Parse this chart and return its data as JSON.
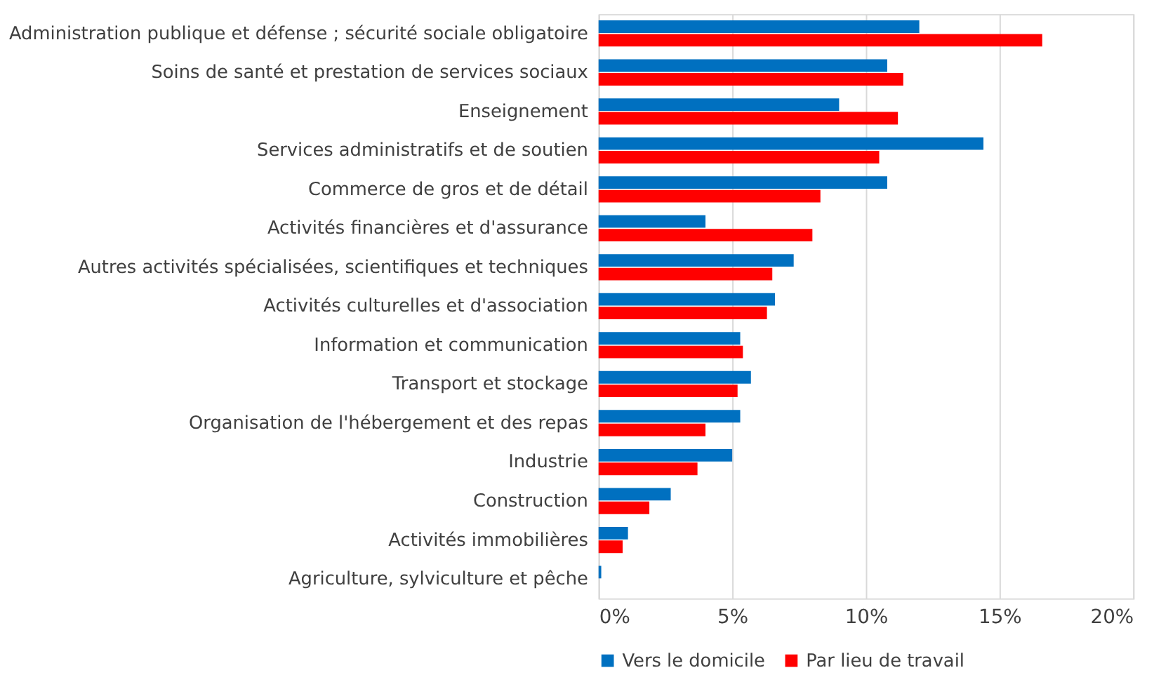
{
  "chart_data": {
    "type": "bar",
    "orientation": "horizontal",
    "categories": [
      "Administration publique et défense ; sécurité sociale obligatoire",
      "Soins de santé et prestation de services sociaux",
      "Enseignement",
      "Services administratifs et de soutien",
      "Commerce de gros et de détail",
      "Activités financières et d'assurance",
      "Autres activités spécialisées, scientifiques et techniques",
      "Activités culturelles et d'association",
      "Information et communication",
      "Transport et stockage",
      "Organisation de l'hébergement et des repas",
      "Industrie",
      "Construction",
      "Activités immobilières",
      "Agriculture, sylviculture et pêche"
    ],
    "series": [
      {
        "name": "Vers le domicile",
        "color": "#0070c0",
        "values": [
          12.0,
          10.8,
          9.0,
          14.4,
          10.8,
          4.0,
          7.3,
          6.6,
          5.3,
          5.7,
          5.3,
          5.0,
          2.7,
          1.1,
          0.1
        ]
      },
      {
        "name": "Par lieu de travail",
        "color": "#ff0000",
        "values": [
          16.6,
          11.4,
          11.2,
          10.5,
          8.3,
          8.0,
          6.5,
          6.3,
          5.4,
          5.2,
          4.0,
          3.7,
          1.9,
          0.9,
          null
        ]
      }
    ],
    "xlim": [
      0,
      20
    ],
    "xticks": [
      {
        "value": 0,
        "label": "0%"
      },
      {
        "value": 5,
        "label": "5%"
      },
      {
        "value": 10,
        "label": "10%"
      },
      {
        "value": 15,
        "label": "15%"
      },
      {
        "value": 20,
        "label": "20%"
      }
    ],
    "grid": "x",
    "legend": "bottom"
  }
}
